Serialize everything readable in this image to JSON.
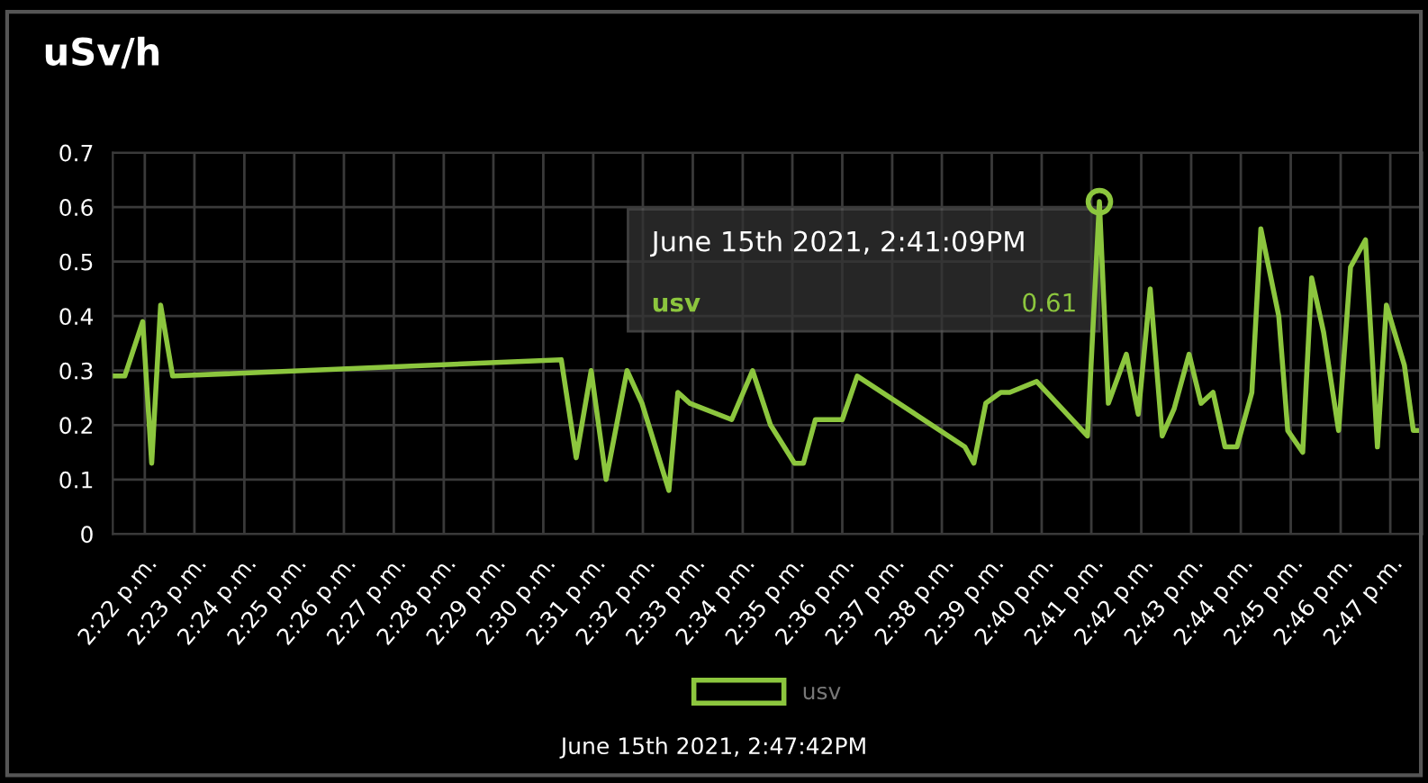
{
  "chart_data": {
    "type": "line",
    "title": "uSv/h",
    "x": [
      14.356,
      14.36,
      14.366,
      14.369,
      14.372,
      14.376,
      14.506,
      14.511,
      14.516,
      14.521,
      14.528,
      14.533,
      14.542,
      14.545,
      14.549,
      14.563,
      14.57,
      14.576,
      14.584,
      14.587,
      14.591,
      14.6,
      14.605,
      14.641,
      14.644,
      14.648,
      14.653,
      14.656,
      14.665,
      14.682,
      14.686,
      14.689,
      14.695,
      14.699,
      14.703,
      14.707,
      14.711,
      14.716,
      14.72,
      14.724,
      14.728,
      14.732,
      14.737,
      14.74,
      14.746,
      14.749,
      14.754,
      14.757,
      14.761,
      14.766,
      14.77,
      14.775,
      14.779,
      14.782,
      14.788,
      14.791,
      14.794
    ],
    "series": [
      {
        "name": "usv",
        "color": "#8cc63e",
        "values": [
          0.29,
          0.29,
          0.39,
          0.13,
          0.42,
          0.29,
          0.32,
          0.14,
          0.3,
          0.1,
          0.3,
          0.24,
          0.08,
          0.26,
          0.24,
          0.21,
          0.3,
          0.2,
          0.13,
          0.13,
          0.21,
          0.21,
          0.29,
          0.16,
          0.13,
          0.24,
          0.26,
          0.26,
          0.28,
          0.18,
          0.61,
          0.24,
          0.33,
          0.22,
          0.45,
          0.18,
          0.23,
          0.33,
          0.24,
          0.26,
          0.16,
          0.16,
          0.26,
          0.56,
          0.4,
          0.19,
          0.15,
          0.47,
          0.37,
          0.19,
          0.49,
          0.54,
          0.16,
          0.42,
          0.31,
          0.19,
          0.19
        ]
      }
    ],
    "xlim": [
      14.356,
      14.794
    ],
    "xticks": [
      {
        "value": 14.3667,
        "label": "2:22 p.m."
      },
      {
        "value": 14.3833,
        "label": "2:23 p.m."
      },
      {
        "value": 14.4,
        "label": "2:24 p.m."
      },
      {
        "value": 14.4167,
        "label": "2:25 p.m."
      },
      {
        "value": 14.4333,
        "label": "2:26 p.m."
      },
      {
        "value": 14.45,
        "label": "2:27 p.m."
      },
      {
        "value": 14.4667,
        "label": "2:28 p.m."
      },
      {
        "value": 14.4833,
        "label": "2:29 p.m."
      },
      {
        "value": 14.5,
        "label": "2:30 p.m."
      },
      {
        "value": 14.5167,
        "label": "2:31 p.m."
      },
      {
        "value": 14.5333,
        "label": "2:32 p.m."
      },
      {
        "value": 14.55,
        "label": "2:33 p.m."
      },
      {
        "value": 14.5667,
        "label": "2:34 p.m."
      },
      {
        "value": 14.5833,
        "label": "2:35 p.m."
      },
      {
        "value": 14.6,
        "label": "2:36 p.m."
      },
      {
        "value": 14.6167,
        "label": "2:37 p.m."
      },
      {
        "value": 14.6333,
        "label": "2:38 p.m."
      },
      {
        "value": 14.65,
        "label": "2:39 p.m."
      },
      {
        "value": 14.6667,
        "label": "2:40 p.m."
      },
      {
        "value": 14.6833,
        "label": "2:41 p.m."
      },
      {
        "value": 14.7,
        "label": "2:42 p.m."
      },
      {
        "value": 14.7167,
        "label": "2:43 p.m."
      },
      {
        "value": 14.7333,
        "label": "2:44 p.m."
      },
      {
        "value": 14.75,
        "label": "2:45 p.m."
      },
      {
        "value": 14.7667,
        "label": "2:46 p.m."
      },
      {
        "value": 14.7833,
        "label": "2:47 p.m."
      }
    ],
    "ylim": [
      0,
      0.7
    ],
    "yticks": [
      0,
      0.1,
      0.2,
      0.3,
      0.4,
      0.5,
      0.6,
      0.7
    ],
    "grid": true,
    "legend": "bottom",
    "marker": "none",
    "line_style": "solid",
    "annotations": [
      {
        "text": "June 15th 2021, 2:41:09PM",
        "x": 14.686,
        "y": 0.61
      },
      "usv",
      "0.61",
      "June 15th 2021, 2:47:42PM"
    ]
  }
}
